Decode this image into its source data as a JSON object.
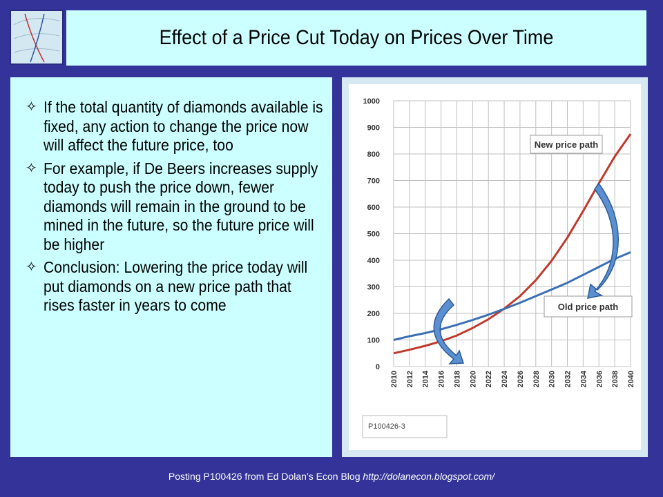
{
  "title": "Effect of a Price Cut Today on Prices Over Time",
  "bullets": [
    "If the total quantity of diamonds available is fixed, any action to change the price now will affect the future price, too",
    "For example, if De Beers increases supply today to push the price down, fewer diamonds will remain in the ground to be mined in the future, so the future price will be higher",
    "Conclusion: Lowering the price today will put diamonds on a new price path that rises faster in years to come"
  ],
  "bullet_marker": "✧",
  "footer": {
    "prefix": "Posting P100426 from Ed Dolan’s Econ Blog ",
    "url": "http://dolanecon.blogspot.com/"
  },
  "chart_data": {
    "type": "line",
    "x": [
      2010,
      2012,
      2014,
      2016,
      2018,
      2020,
      2022,
      2024,
      2026,
      2028,
      2030,
      2032,
      2034,
      2036,
      2038,
      2040
    ],
    "xticks": [
      "2010",
      "2012",
      "2014",
      "2016",
      "2018",
      "2020",
      "2022",
      "2024",
      "2026",
      "2028",
      "2030",
      "2032",
      "2034",
      "2036",
      "2038",
      "2040"
    ],
    "yticks": [
      "0",
      "100",
      "200",
      "300",
      "400",
      "500",
      "600",
      "700",
      "800",
      "900",
      "1000"
    ],
    "ylim": [
      0,
      1000
    ],
    "series": [
      {
        "name": "New price path",
        "color": "#c0392b",
        "values": [
          50,
          63,
          78,
          95,
          117,
          145,
          178,
          218,
          265,
          325,
          398,
          485,
          585,
          690,
          790,
          875
        ]
      },
      {
        "name": "Old price path",
        "color": "#3a6fb5",
        "values": [
          100,
          114,
          126,
          140,
          157,
          175,
          195,
          217,
          240,
          265,
          290,
          315,
          345,
          375,
          405,
          430
        ]
      }
    ],
    "annotation": "P100426-3",
    "grid": true
  }
}
